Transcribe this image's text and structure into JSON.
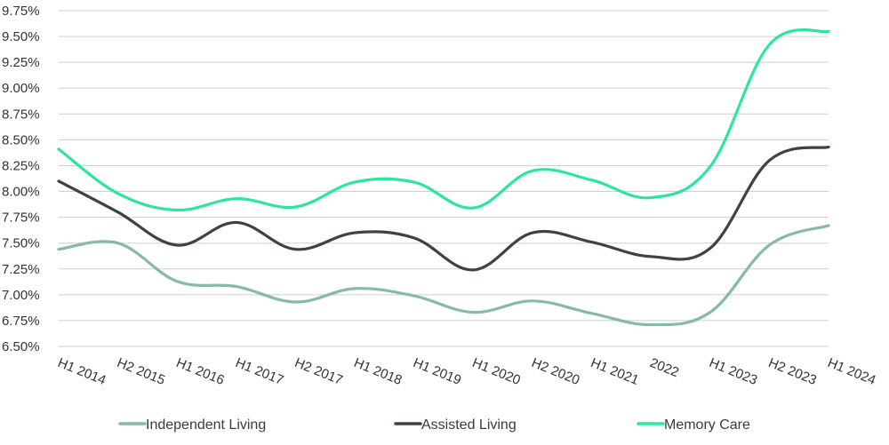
{
  "chart_data": {
    "type": "line",
    "categories": [
      "H1 2014",
      "H2 2015",
      "H1 2016",
      "H1 2017",
      "H2 2017",
      "H1 2018",
      "H1 2019",
      "H1 2020",
      "H2 2020",
      "H1 2021",
      "2022",
      "H1 2023",
      "H2 2023",
      "H1 2024"
    ],
    "ylim": [
      6.5,
      9.75
    ],
    "yticks": [
      "6.50%",
      "6.75%",
      "7.00%",
      "7.25%",
      "7.50%",
      "7.75%",
      "8.00%",
      "8.25%",
      "8.50%",
      "8.75%",
      "9.00%",
      "9.25%",
      "9.50%",
      "9.75%"
    ],
    "ytick_values": [
      6.5,
      6.75,
      7.0,
      7.25,
      7.5,
      7.75,
      8.0,
      8.25,
      8.5,
      8.75,
      9.0,
      9.25,
      9.5,
      9.75
    ],
    "grid": true,
    "legend_position": "bottom",
    "series": [
      {
        "name": "Independent Living",
        "color": "#86b9aa",
        "values": [
          7.44,
          7.5,
          7.13,
          7.08,
          6.93,
          7.06,
          6.99,
          6.83,
          6.94,
          6.82,
          6.71,
          6.83,
          7.48,
          7.67
        ]
      },
      {
        "name": "Assisted Living",
        "color": "#3c4345",
        "values": [
          8.1,
          7.8,
          7.48,
          7.7,
          7.44,
          7.6,
          7.55,
          7.24,
          7.6,
          7.51,
          7.37,
          7.45,
          8.3,
          8.43
        ]
      },
      {
        "name": "Memory Care",
        "color": "#2ee5a0",
        "values": [
          8.41,
          7.98,
          7.82,
          7.93,
          7.85,
          8.09,
          8.09,
          7.84,
          8.2,
          8.11,
          7.94,
          8.24,
          9.42,
          9.55
        ]
      }
    ]
  }
}
